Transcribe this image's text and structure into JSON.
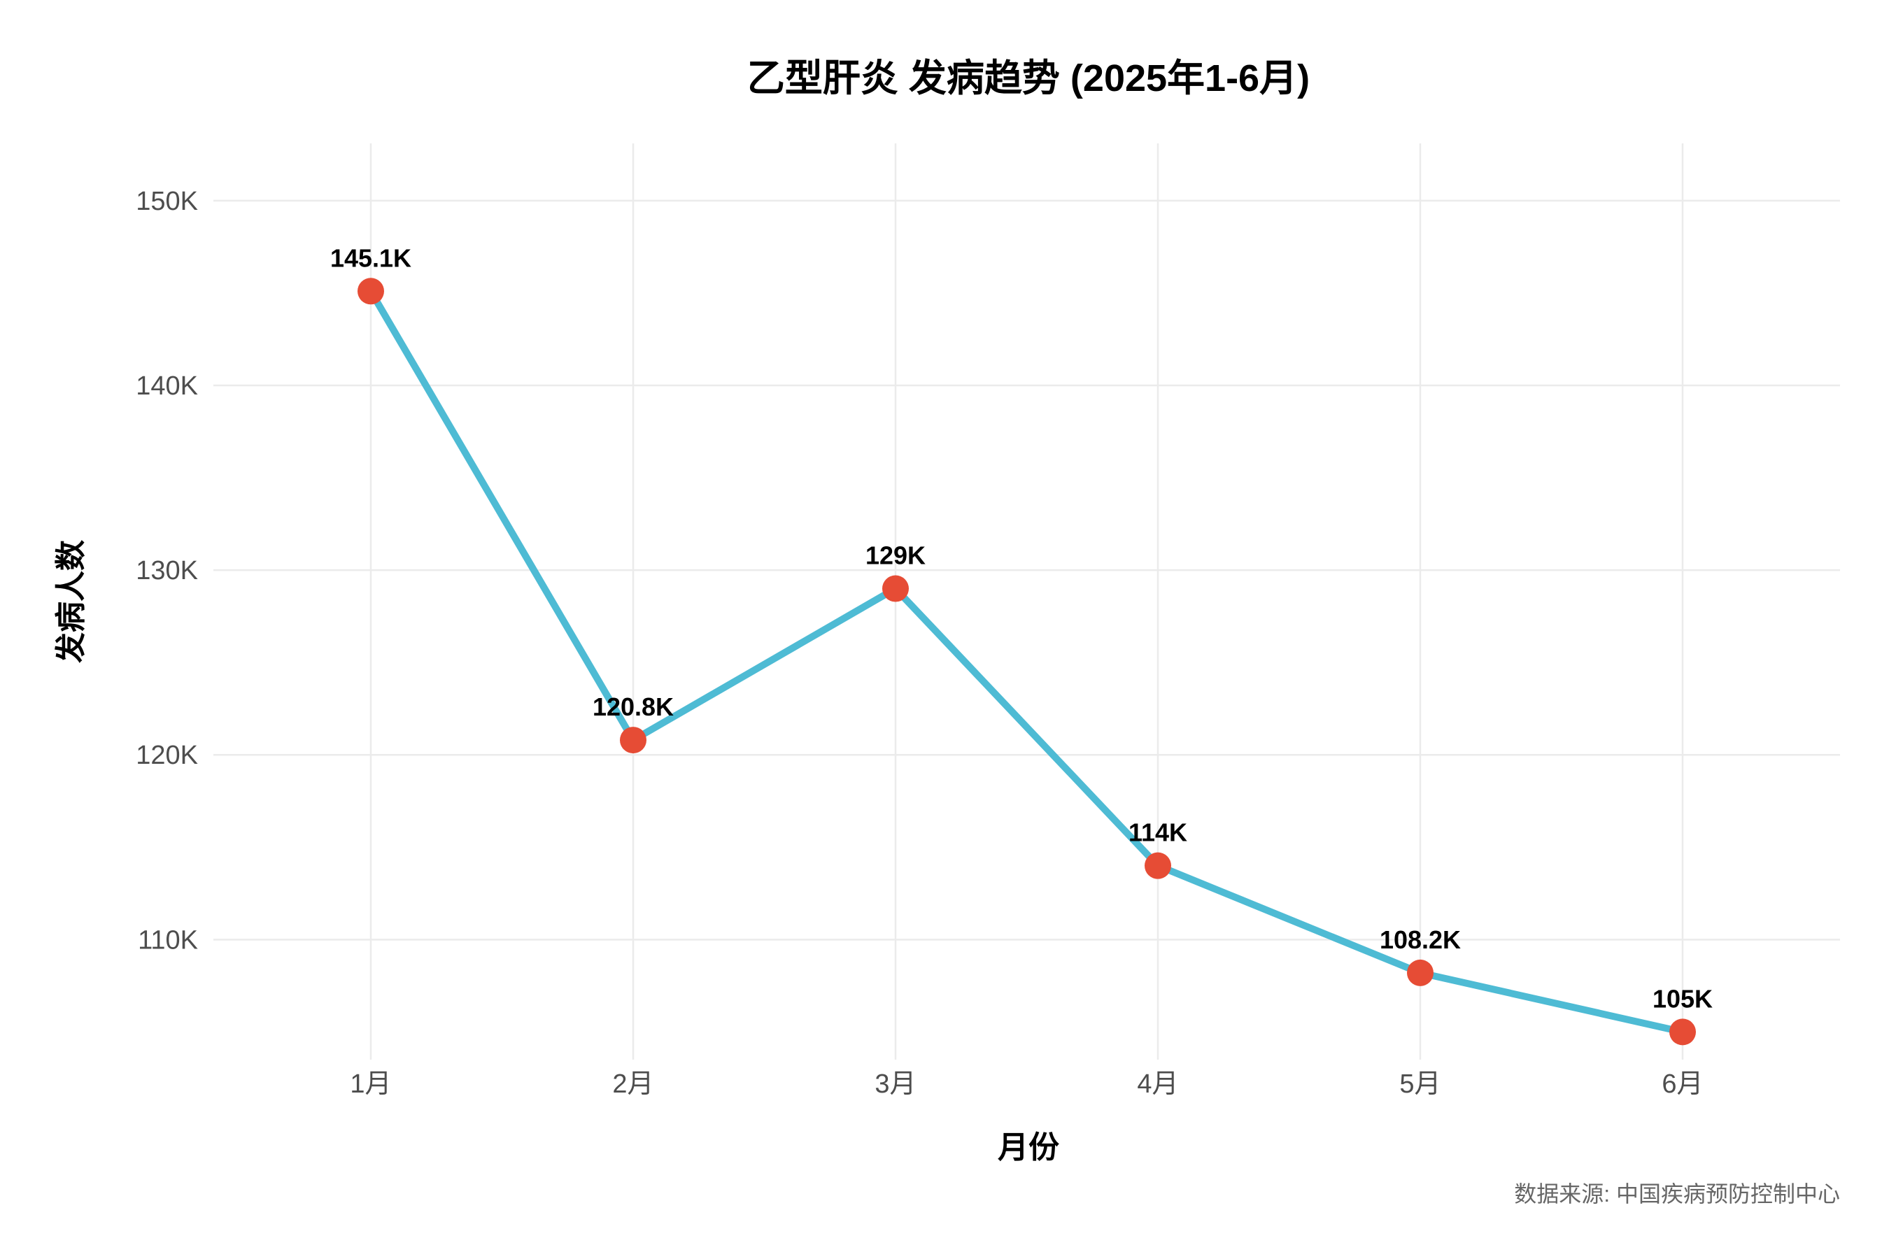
{
  "chart_data": {
    "type": "line",
    "title": "乙型肝炎 发病趋势 (2025年1-6月)",
    "xlabel": "月份",
    "ylabel": "发病人数",
    "categories": [
      "1月",
      "2月",
      "3月",
      "4月",
      "5月",
      "6月"
    ],
    "series": [
      {
        "values": [
          145100,
          120800,
          129000,
          114000,
          108200,
          105000
        ],
        "labels": [
          "145.1K",
          "120.8K",
          "129K",
          "114K",
          "108.2K",
          "105K"
        ]
      }
    ],
    "y_ticks": [
      110000,
      120000,
      130000,
      140000,
      150000
    ],
    "y_tick_labels": [
      "110K",
      "120K",
      "130K",
      "140K",
      "150K"
    ],
    "ylim": [
      103500,
      153100
    ],
    "grid": true,
    "legend": "none",
    "line_color": "#4ebbd4",
    "point_color": "#e64c35",
    "source": "数据来源: 中国疾病预防控制中心"
  }
}
